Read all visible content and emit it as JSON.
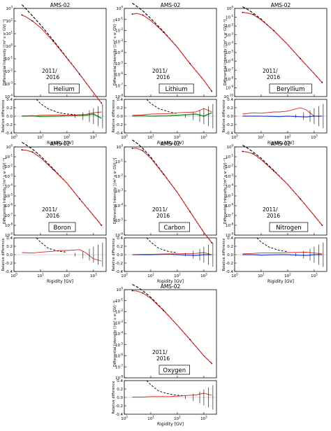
{
  "figure": {
    "panels": [
      {
        "id": "helium",
        "title": "AMS-02",
        "element": "Helium",
        "era": [
          "2011/",
          "2016"
        ],
        "ylabel_top": "Differential Intensity  [(m² s sr GV)⁻¹]",
        "ylabel_bottom": "Relative difference",
        "xlabel": "Rigidity [GV]"
      },
      {
        "id": "lithium",
        "title": "AMS-02",
        "element": "Lithium",
        "era": [
          "2011/",
          "2016"
        ],
        "ylabel_top": "Differential Intensity  [(m² s sr GV)⁻¹]",
        "ylabel_bottom": "Relative difference",
        "xlabel": "Rigidity [GV]"
      },
      {
        "id": "beryllium",
        "title": "AMS-02",
        "element": "Beryllium",
        "era": [
          "2011/",
          "2016"
        ],
        "ylabel_top": "Differential Intensity  [(m² s sr GV)⁻¹]",
        "ylabel_bottom": "Relative difference",
        "xlabel": "Rigidity [GV]"
      },
      {
        "id": "boron",
        "title": "AMS-02",
        "element": "Boron",
        "era": [
          "2011/",
          "2016"
        ],
        "ylabel_top": "Differential Intensity  [(m² s sr GV)⁻¹]",
        "ylabel_bottom": "Relative difference",
        "xlabel": "Rigidity [GV]"
      },
      {
        "id": "carbon",
        "title": "AMS-02",
        "element": "Carbon",
        "era": [
          "2011/",
          "2016"
        ],
        "ylabel_top": "Differential Intensity  [(m² s sr GV)⁻¹]",
        "ylabel_bottom": "Relative difference",
        "xlabel": "Rigidity [GV]"
      },
      {
        "id": "nitrogen",
        "title": "AMS-02",
        "element": "Nitrogen",
        "era": [
          "2011/",
          "2016"
        ],
        "ylabel_top": "Differential Intensity  [(m² s sr GV)⁻¹]",
        "ylabel_bottom": "Relative difference",
        "xlabel": "Rigidity [GV]"
      },
      {
        "id": "oxygen",
        "title": "AMS-02",
        "element": "Oxygen",
        "era": [
          "2011/",
          "2016"
        ],
        "ylabel_top": "Differential Intensity  [(m² s sr GV)⁻¹]",
        "ylabel_bottom": "Relative difference",
        "xlabel": "Rigidity [GV]"
      }
    ],
    "colors": {
      "model": "#d62728",
      "lis": "#000000",
      "data": "#000000",
      "green": "#2ca02c",
      "blue": "#1f3fd6"
    }
  },
  "chart_data": [
    {
      "type": "line",
      "panel": "helium",
      "xscale": "log",
      "yscale": "log",
      "xlim": [
        1,
        3000
      ],
      "top_ylim_exp": [
        -4,
        3
      ],
      "top_yticks_exp": [
        -4,
        -3,
        -2,
        -1,
        0,
        1,
        2,
        3
      ],
      "series": [
        {
          "style": "lis",
          "x": [
            2,
            3,
            5,
            10,
            30,
            100,
            300,
            1000,
            2000
          ],
          "y": [
            2000,
            800,
            250,
            50,
            3,
            0.12,
            0.006,
            0.0002,
            3e-05
          ]
        },
        {
          "style": "model",
          "x": [
            2,
            3,
            5,
            10,
            30,
            100,
            300,
            1000,
            2000
          ],
          "y": [
            300,
            200,
            100,
            30,
            2.5,
            0.11,
            0.006,
            0.0002,
            3e-05
          ]
        }
      ],
      "bottom_ylim": [
        -0.4,
        0.4
      ],
      "bottom_yticks": [
        -0.4,
        -0.2,
        0.0,
        0.2,
        0.4
      ],
      "bottom_series": [
        {
          "style": "lis_diff",
          "x": [
            7,
            10,
            20,
            50,
            100,
            200
          ],
          "y": [
            0.4,
            0.3,
            0.17,
            0.08,
            0.05,
            0.04
          ]
        },
        {
          "style": "green_diff",
          "x": [
            2,
            5,
            10,
            50,
            100,
            500,
            1000,
            2000
          ],
          "y": [
            0.0,
            0.01,
            -0.01,
            0.0,
            0.01,
            0.02,
            0.05,
            -0.05
          ]
        },
        {
          "style": "model_diff",
          "x": [
            2,
            5,
            10,
            50,
            100,
            500,
            1000,
            2000
          ],
          "y": [
            0.01,
            0.0,
            0.02,
            0.03,
            0.02,
            0.04,
            0.08,
            0.1
          ]
        }
      ]
    },
    {
      "type": "line",
      "panel": "lithium",
      "xscale": "log",
      "yscale": "log",
      "xlim": [
        1,
        3000
      ],
      "top_ylim_exp": [
        -8,
        0
      ],
      "top_yticks_exp": [
        -8,
        -7,
        -6,
        -5,
        -4,
        -3,
        -2,
        -1,
        0
      ],
      "series": [
        {
          "style": "lis",
          "x": [
            2,
            3,
            5,
            10,
            30,
            100,
            300,
            1000,
            2000
          ],
          "y": [
            3,
            1.5,
            0.6,
            0.12,
            0.008,
            0.0003,
            1e-05,
            3e-07,
            3e-08
          ]
        },
        {
          "style": "model",
          "x": [
            2,
            3,
            5,
            10,
            30,
            100,
            300,
            1000,
            2000
          ],
          "y": [
            0.3,
            0.35,
            0.25,
            0.08,
            0.007,
            0.0003,
            1e-05,
            3e-07,
            3e-08
          ]
        }
      ],
      "bottom_ylim": [
        -0.4,
        0.4
      ],
      "bottom_yticks": [
        -0.4,
        -0.2,
        0.0,
        0.2,
        0.4
      ],
      "bottom_series": [
        {
          "style": "lis_diff",
          "x": [
            7,
            10,
            20,
            50,
            100
          ],
          "y": [
            0.4,
            0.3,
            0.18,
            0.1,
            0.06
          ]
        },
        {
          "style": "green_diff",
          "x": [
            2,
            5,
            10,
            50,
            100,
            500,
            1000,
            2000
          ],
          "y": [
            0.0,
            0.01,
            0.0,
            0.01,
            0.02,
            0.05,
            0.0,
            0.08
          ]
        },
        {
          "style": "model_diff",
          "x": [
            2,
            5,
            10,
            50,
            100,
            500,
            1000,
            2000
          ],
          "y": [
            0.02,
            0.03,
            0.05,
            0.06,
            0.08,
            0.1,
            0.18,
            0.1
          ]
        }
      ]
    },
    {
      "type": "line",
      "panel": "beryllium",
      "xscale": "log",
      "yscale": "log",
      "xlim": [
        1,
        3000
      ],
      "top_ylim_exp": [
        -10,
        0
      ],
      "top_yticks_exp": [
        -10,
        -9,
        -8,
        -7,
        -6,
        -5,
        -4,
        -3,
        -2,
        -1,
        0
      ],
      "series": [
        {
          "style": "lis",
          "x": [
            2,
            3,
            5,
            10,
            30,
            100,
            300,
            1000,
            2000
          ],
          "y": [
            1.5,
            0.8,
            0.3,
            0.06,
            0.003,
            8e-05,
            2e-06,
            4e-08,
            4e-09
          ]
        },
        {
          "style": "model",
          "x": [
            2,
            3,
            5,
            10,
            30,
            100,
            300,
            1000,
            2000
          ],
          "y": [
            0.35,
            0.3,
            0.2,
            0.05,
            0.003,
            8e-05,
            2e-06,
            4e-08,
            4e-09
          ]
        }
      ],
      "bottom_ylim": [
        -0.4,
        0.4
      ],
      "bottom_yticks": [
        -0.4,
        -0.2,
        0.0,
        0.2,
        0.4
      ],
      "bottom_series": [
        {
          "style": "blue_diff",
          "x": [
            2,
            5,
            10,
            50,
            100,
            500,
            1000,
            2000
          ],
          "y": [
            0.0,
            0.0,
            0.0,
            -0.01,
            0.0,
            -0.02,
            0.0,
            0.0
          ]
        },
        {
          "style": "model_diff",
          "x": [
            2,
            5,
            10,
            30,
            50,
            100,
            300,
            500,
            1000
          ],
          "y": [
            0.05,
            0.08,
            0.07,
            0.1,
            0.1,
            0.12,
            0.2,
            0.15,
            0.0
          ]
        }
      ]
    },
    {
      "type": "line",
      "panel": "boron",
      "xscale": "log",
      "yscale": "log",
      "xlim": [
        1,
        3000
      ],
      "top_ylim_exp": [
        -9,
        0
      ],
      "top_yticks_exp": [
        -9,
        -8,
        -7,
        -6,
        -5,
        -4,
        -3,
        -2,
        -1,
        0
      ],
      "series": [
        {
          "style": "lis",
          "x": [
            2,
            3,
            5,
            10,
            30,
            100,
            300,
            1000,
            2000
          ],
          "y": [
            3,
            1.5,
            0.6,
            0.12,
            0.006,
            0.0002,
            5e-06,
            1e-07,
            1e-08
          ]
        },
        {
          "style": "model",
          "x": [
            2,
            3,
            5,
            10,
            30,
            100,
            300,
            1000,
            2000
          ],
          "y": [
            0.5,
            0.45,
            0.3,
            0.08,
            0.005,
            0.0002,
            5e-06,
            1e-07,
            1e-08
          ]
        }
      ],
      "bottom_ylim": [
        -0.4,
        0.4
      ],
      "bottom_yticks": [
        -0.4,
        -0.2,
        0.0,
        0.2,
        0.4
      ],
      "bottom_series": [
        {
          "style": "lis_diff",
          "x": [
            7,
            10,
            20,
            50,
            100
          ],
          "y": [
            0.4,
            0.3,
            0.15,
            0.08,
            0.06
          ]
        },
        {
          "style": "model_diff",
          "x": [
            2,
            5,
            10,
            30,
            50,
            100,
            300,
            500,
            1000,
            2000
          ],
          "y": [
            0.05,
            0.04,
            0.06,
            0.08,
            0.1,
            0.1,
            0.12,
            0.05,
            -0.1,
            -0.15
          ]
        }
      ]
    },
    {
      "type": "line",
      "panel": "carbon",
      "xscale": "log",
      "yscale": "log",
      "xlim": [
        1,
        3000
      ],
      "top_ylim_exp": [
        -6,
        0
      ],
      "top_yticks_exp": [
        -6,
        -5,
        -4,
        -3,
        -2,
        -1,
        0
      ],
      "series": [
        {
          "style": "lis",
          "x": [
            2,
            3,
            5,
            10,
            30,
            100,
            300,
            1000,
            2000
          ],
          "y": [
            3,
            1.8,
            0.8,
            0.2,
            0.015,
            0.0008,
            4e-05,
            1.5e-06,
            3e-07
          ]
        },
        {
          "style": "model",
          "x": [
            2,
            3,
            5,
            10,
            30,
            100,
            300,
            1000,
            2000
          ],
          "y": [
            0.8,
            0.8,
            0.55,
            0.17,
            0.014,
            0.0008,
            4e-05,
            1.5e-06,
            3e-07
          ]
        }
      ],
      "bottom_ylim": [
        -0.4,
        0.4
      ],
      "bottom_yticks": [
        -0.4,
        -0.2,
        0.0,
        0.2,
        0.4
      ],
      "bottom_series": [
        {
          "style": "lis_diff",
          "x": [
            7,
            10,
            20,
            50,
            100
          ],
          "y": [
            0.4,
            0.3,
            0.15,
            0.07,
            0.05
          ]
        },
        {
          "style": "blue_diff",
          "x": [
            2,
            5,
            10,
            50,
            100,
            500,
            1000,
            2000
          ],
          "y": [
            0.0,
            0.0,
            0.0,
            0.01,
            0.0,
            -0.02,
            0.0,
            0.0
          ]
        },
        {
          "style": "model_diff",
          "x": [
            2,
            5,
            10,
            50,
            100,
            500,
            1000,
            2000
          ],
          "y": [
            0.0,
            0.01,
            0.01,
            0.02,
            0.02,
            0.03,
            0.05,
            0.0
          ]
        }
      ]
    },
    {
      "type": "line",
      "panel": "nitrogen",
      "xscale": "log",
      "yscale": "log",
      "xlim": [
        1,
        3000
      ],
      "top_ylim_exp": [
        -9,
        0
      ],
      "top_yticks_exp": [
        -9,
        -8,
        -7,
        -6,
        -5,
        -4,
        -3,
        -2,
        -1,
        0
      ],
      "series": [
        {
          "style": "lis",
          "x": [
            2,
            3,
            5,
            10,
            30,
            100,
            300,
            1000,
            2000
          ],
          "y": [
            1.5,
            0.8,
            0.3,
            0.07,
            0.004,
            0.00015,
            5e-06,
            1e-07,
            1e-08
          ]
        },
        {
          "style": "model",
          "x": [
            2,
            3,
            5,
            10,
            30,
            100,
            300,
            1000,
            2000
          ],
          "y": [
            0.35,
            0.3,
            0.2,
            0.05,
            0.0035,
            0.00015,
            5e-06,
            1e-07,
            1e-08
          ]
        }
      ],
      "bottom_ylim": [
        -0.4,
        0.4
      ],
      "bottom_yticks": [
        -0.4,
        -0.2,
        0.0,
        0.2,
        0.4
      ],
      "bottom_series": [
        {
          "style": "lis_diff",
          "x": [
            7,
            10,
            20,
            50,
            100
          ],
          "y": [
            0.4,
            0.3,
            0.18,
            0.1,
            0.07
          ]
        },
        {
          "style": "blue_diff",
          "x": [
            2,
            5,
            10,
            50,
            100,
            500,
            1000,
            2000
          ],
          "y": [
            0.0,
            0.0,
            -0.01,
            0.0,
            0.0,
            -0.02,
            0.0,
            0.0
          ]
        },
        {
          "style": "model_diff",
          "x": [
            2,
            5,
            10,
            50,
            100,
            500,
            1000,
            2000
          ],
          "y": [
            0.02,
            0.03,
            0.04,
            0.04,
            0.05,
            0.06,
            0.04,
            0.02
          ]
        }
      ]
    },
    {
      "type": "line",
      "panel": "oxygen",
      "xscale": "log",
      "yscale": "log",
      "xlim": [
        1,
        3000
      ],
      "top_ylim_exp": [
        -8,
        0
      ],
      "top_yticks_exp": [
        -8,
        -7,
        -6,
        -5,
        -4,
        -3,
        -2,
        -1,
        0
      ],
      "series": [
        {
          "style": "lis",
          "x": [
            2,
            3,
            5,
            10,
            30,
            100,
            300,
            1000,
            2000
          ],
          "y": [
            3,
            1.8,
            0.8,
            0.2,
            0.014,
            0.0006,
            3e-05,
            1e-06,
            2e-07
          ]
        },
        {
          "style": "model",
          "x": [
            2,
            3,
            5,
            10,
            30,
            100,
            300,
            1000,
            2000
          ],
          "y": [
            0.8,
            0.75,
            0.5,
            0.16,
            0.013,
            0.0006,
            3e-05,
            1e-06,
            2e-07
          ]
        }
      ],
      "bottom_ylim": [
        -0.4,
        0.4
      ],
      "bottom_yticks": [
        -0.4,
        -0.2,
        0.0,
        0.2,
        0.4
      ],
      "bottom_series": [
        {
          "style": "lis_diff",
          "x": [
            7,
            10,
            20,
            50,
            100,
            200
          ],
          "y": [
            0.4,
            0.3,
            0.15,
            0.08,
            0.05,
            0.04
          ]
        },
        {
          "style": "model_diff",
          "x": [
            2,
            5,
            10,
            50,
            100,
            500,
            1000,
            2000
          ],
          "y": [
            0.01,
            0.01,
            0.02,
            0.02,
            0.03,
            0.06,
            0.1,
            0.05
          ]
        }
      ]
    }
  ]
}
